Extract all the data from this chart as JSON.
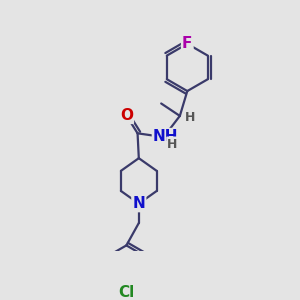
{
  "bg_color": "#e4e4e4",
  "bond_color": "#3a3a6a",
  "bond_width": 1.6,
  "atom_colors": {
    "O": "#cc0000",
    "N": "#1010cc",
    "Cl": "#228822",
    "F": "#aa00aa",
    "H": "#555555"
  },
  "font_size": 10,
  "fig_size": [
    3.0,
    3.0
  ],
  "dpi": 100
}
